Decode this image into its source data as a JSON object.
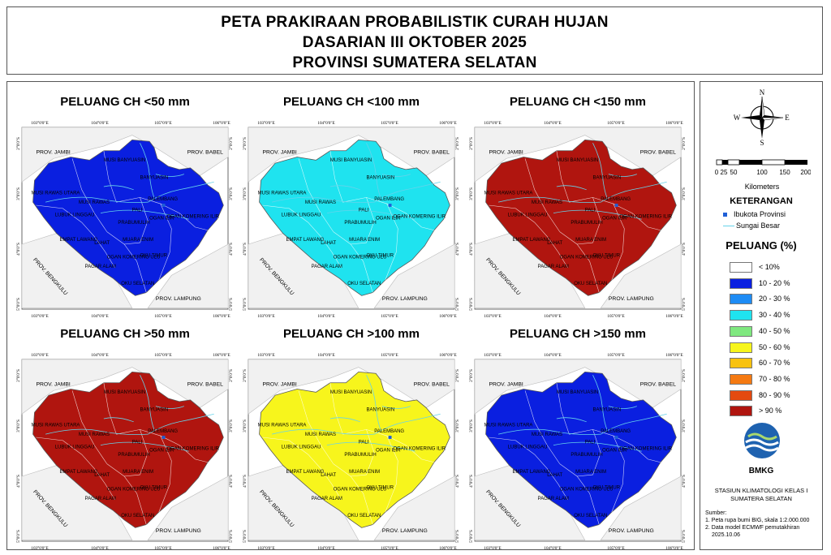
{
  "title": {
    "line1": "PETA PRAKIRAAN PROBABILISTIK CURAH HUJAN",
    "line2": "DASARIAN III OKTOBER 2025",
    "line3": "PROVINSI SUMATERA SELATAN"
  },
  "panels": [
    {
      "title": "PELUANG CH <50 mm",
      "dominant_class": "10 - 20 %"
    },
    {
      "title": "PELUANG CH <100 mm",
      "dominant_class": "30 - 40 %"
    },
    {
      "title": "PELUANG CH <150 mm",
      "dominant_class": "> 90 %"
    },
    {
      "title": "PELUANG CH >50 mm",
      "dominant_class": "> 90 %"
    },
    {
      "title": "PELUANG CH >100 mm",
      "dominant_class": "50 - 60 %"
    },
    {
      "title": "PELUANG CH >150 mm",
      "dominant_class": "10 - 20 %"
    }
  ],
  "map_labels": {
    "lon_ticks": [
      "103°0'0\"E",
      "104°0'0\"E",
      "105°0'0\"E",
      "106°0'0\"E"
    ],
    "lat_ticks": [
      "2°0'0\"S",
      "3°0'0\"S",
      "4°0'0\"S",
      "5°0'0\"S"
    ],
    "neighbors": [
      "PROV. JAMBI",
      "PROV. BABEL",
      "PROV. BENGKULU",
      "PROV. LAMPUNG"
    ],
    "districts": [
      "MUSI BANYUASIN",
      "BANYUASIN",
      "MUSI RAWAS UTARA",
      "MUSI RAWAS",
      "LUBUK LINGGAU",
      "PALI",
      "PALEMBANG",
      "PRABUMULIH",
      "MUARA ENIM",
      "OGAN ILIR",
      "OGAN KOMERING ILIR",
      "EMPAT LAWANG",
      "LAHAT",
      "PAGAR ALAM",
      "OGAN KOMERING ULU",
      "OKU TIMUR",
      "OKU SELATAN"
    ]
  },
  "legend": {
    "compass": {
      "n": "N",
      "e": "E",
      "s": "S",
      "w": "W"
    },
    "scale_ticks": [
      "0",
      "25",
      "50",
      "100",
      "150",
      "200"
    ],
    "scale_unit": "Kilometers",
    "keterangan_title": "KETERANGAN",
    "keterangan_items": [
      {
        "label": "Ibukota Provinsi",
        "color": "#1f5fd6"
      },
      {
        "label": "Sungai Besar",
        "color": "#66d3ea"
      }
    ],
    "peluang_title": "PELUANG (%)",
    "classes": [
      {
        "label": "< 10%",
        "color": "#ffffff"
      },
      {
        "label": "10 - 20 %",
        "color": "#0a1fe0"
      },
      {
        "label": "20 - 30 %",
        "color": "#1e8cf5"
      },
      {
        "label": "30 - 40 %",
        "color": "#1fe3ef"
      },
      {
        "label": "40 - 50 %",
        "color": "#7fe87f"
      },
      {
        "label": "50 - 60 %",
        "color": "#f7f51c"
      },
      {
        "label": "60 - 70 %",
        "color": "#f8c20f"
      },
      {
        "label": "70 - 80 %",
        "color": "#f57a12"
      },
      {
        "label": "80 - 90 %",
        "color": "#e44a10"
      },
      {
        "label": "> 90 %",
        "color": "#b0150f"
      }
    ],
    "logo_text": "BMKG",
    "station_line1": "STASIUN KLIMATOLOGI KELAS I",
    "station_line2": "SUMATERA SELATAN",
    "sumber_title": "Sumber:",
    "sumber_1": "1. Peta rupa bumi BIG, skala 1:2.000.000",
    "sumber_2": "2. Data model ECMWF pemutakhiran",
    "sumber_3": "2025.10.06"
  }
}
